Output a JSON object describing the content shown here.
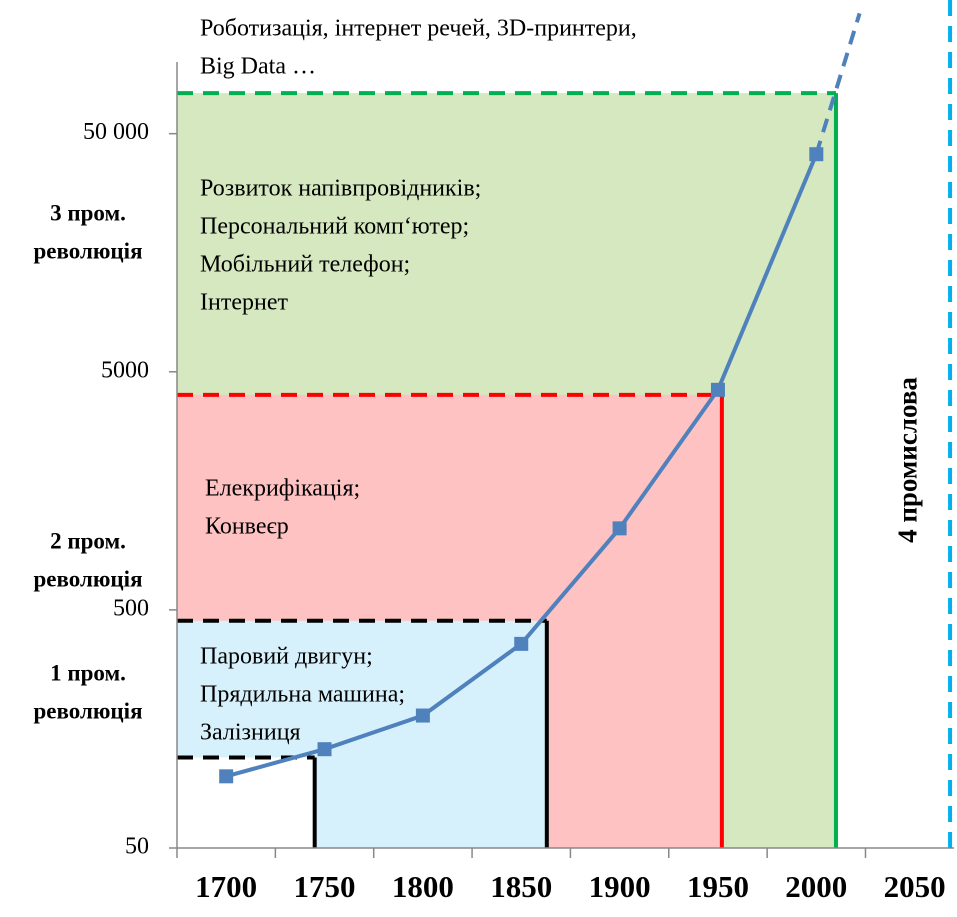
{
  "chart_data": {
    "type": "line",
    "log_y": true,
    "categories": [
      1700,
      1750,
      1800,
      1850,
      1900,
      1950,
      2000,
      2050
    ],
    "series": [
      {
        "color": "#4f81bd",
        "values": [
          100,
          130,
          180,
          360,
          1100,
          4200,
          41000,
          null
        ]
      }
    ],
    "trend": {
      "x": [
        2000,
        2022
      ],
      "values": [
        41000,
        160000
      ]
    },
    "xlim": [
      1675,
      2070
    ],
    "xticks": [
      1675,
      1725,
      1775,
      1825,
      1875,
      1925,
      1975,
      2025
    ],
    "ylim": [
      50,
      100000
    ],
    "yticks": [
      50,
      500,
      5000,
      {
        "value": 50000,
        "label": "50 000"
      }
    ],
    "regions": [
      {
        "x_end": 2010,
        "top": 74000,
        "fill": "#d5e8bf",
        "line": "#00b050",
        "label": [
          "3 пром.",
          "революція"
        ],
        "text": [
          "Розвиток напівпровідників;",
          "Персональний комп‘ютер;",
          "Мобільний телефон;",
          "Інтернет"
        ]
      },
      {
        "x_end": 1952,
        "top": 4000,
        "fill": "#ffc2c2",
        "line": "#ff0000",
        "label": [
          "2 пром.",
          "революція"
        ],
        "text": [
          "Елекрифікація;",
          "Конвеєр"
        ]
      },
      {
        "x_end": 1863,
        "top": 450,
        "fill": "#d6f1fb",
        "line": "#000000",
        "label": [
          "1 пром.",
          "революція"
        ],
        "text": [
          "Паровий двигун;",
          "Прядильна машина;",
          "Залізниця"
        ]
      },
      {
        "x_end": 1745,
        "top": 120,
        "fill": "#ffffff",
        "line": "#000000"
      }
    ],
    "note": [
      "Роботизація, інтернет речей, 3D-принтери,",
      "Big Data …"
    ],
    "boundary": {
      "x": 2068,
      "color": "#00b0f0",
      "label": "4 промислова"
    }
  }
}
